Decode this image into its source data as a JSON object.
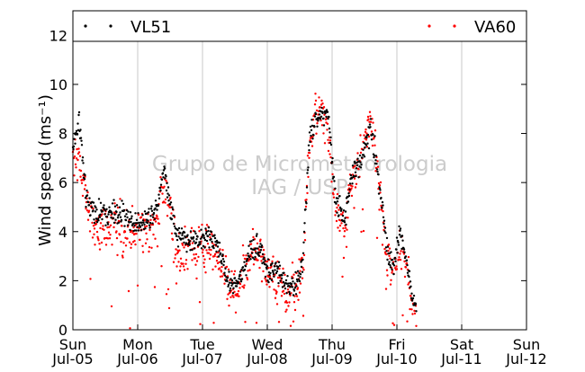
{
  "chart_data": {
    "type": "scatter",
    "ylabel": "Wind speed (ms⁻¹)",
    "ylim": [
      0,
      13
    ],
    "y_ticks": [
      0,
      2,
      4,
      6,
      8,
      10,
      12
    ],
    "x_range_days": [
      0,
      7
    ],
    "grid": "vertical",
    "legend_placement": "top",
    "watermark_lines": [
      "Grupo de Micrometeorologia",
      "IAG / USP"
    ],
    "x_ticks": [
      {
        "day": "Sun",
        "date": "Jul-05"
      },
      {
        "day": "Mon",
        "date": "Jul-06"
      },
      {
        "day": "Tue",
        "date": "Jul-07"
      },
      {
        "day": "Wed",
        "date": "Jul-08"
      },
      {
        "day": "Thu",
        "date": "Jul-09"
      },
      {
        "day": "Fri",
        "date": "Jul-10"
      },
      {
        "day": "Sat",
        "date": "Jul-11"
      },
      {
        "day": "Sun",
        "date": "Jul-12"
      }
    ],
    "series": [
      {
        "name": "VL51",
        "color": "#000000",
        "spread": 0.55,
        "trend": [
          [
            0.0,
            7.4
          ],
          [
            0.1,
            8.6
          ],
          [
            0.2,
            5.3
          ],
          [
            0.35,
            4.8
          ],
          [
            0.6,
            4.7
          ],
          [
            0.8,
            4.7
          ],
          [
            0.95,
            4.3
          ],
          [
            1.15,
            4.5
          ],
          [
            1.3,
            5.1
          ],
          [
            1.4,
            6.6
          ],
          [
            1.5,
            5.2
          ],
          [
            1.6,
            3.9
          ],
          [
            1.8,
            3.6
          ],
          [
            1.95,
            3.7
          ],
          [
            2.1,
            3.8
          ],
          [
            2.25,
            3.4
          ],
          [
            2.4,
            1.9
          ],
          [
            2.55,
            1.9
          ],
          [
            2.75,
            3.3
          ],
          [
            2.9,
            3.4
          ],
          [
            3.0,
            2.3
          ],
          [
            3.15,
            2.4
          ],
          [
            3.3,
            1.9
          ],
          [
            3.45,
            1.8
          ],
          [
            3.55,
            2.8
          ],
          [
            3.65,
            7.8
          ],
          [
            3.8,
            8.8
          ],
          [
            3.95,
            8.6
          ],
          [
            4.05,
            5.3
          ],
          [
            4.2,
            4.5
          ],
          [
            4.3,
            6.2
          ],
          [
            4.45,
            7.0
          ],
          [
            4.6,
            8.2
          ],
          [
            4.75,
            5.7
          ],
          [
            4.85,
            3.2
          ],
          [
            4.95,
            2.6
          ],
          [
            5.05,
            4.0
          ],
          [
            5.15,
            2.7
          ],
          [
            5.25,
            1.2
          ],
          [
            5.3,
            0.7
          ]
        ]
      },
      {
        "name": "VA60",
        "color": "#ff0000",
        "spread": 1.1,
        "trend": [
          [
            0.0,
            6.8
          ],
          [
            0.1,
            7.2
          ],
          [
            0.2,
            5.2
          ],
          [
            0.35,
            4.1
          ],
          [
            0.6,
            4.3
          ],
          [
            0.8,
            3.9
          ],
          [
            0.95,
            4.0
          ],
          [
            1.15,
            4.1
          ],
          [
            1.3,
            4.4
          ],
          [
            1.4,
            6.2
          ],
          [
            1.5,
            4.8
          ],
          [
            1.6,
            3.0
          ],
          [
            1.8,
            3.3
          ],
          [
            1.95,
            3.5
          ],
          [
            2.1,
            3.4
          ],
          [
            2.25,
            3.0
          ],
          [
            2.4,
            1.8
          ],
          [
            2.55,
            1.7
          ],
          [
            2.75,
            3.1
          ],
          [
            2.9,
            3.3
          ],
          [
            3.0,
            2.2
          ],
          [
            3.15,
            2.0
          ],
          [
            3.3,
            1.5
          ],
          [
            3.45,
            1.5
          ],
          [
            3.55,
            2.6
          ],
          [
            3.65,
            7.6
          ],
          [
            3.8,
            9.0
          ],
          [
            3.95,
            8.0
          ],
          [
            4.05,
            4.8
          ],
          [
            4.2,
            4.1
          ],
          [
            4.3,
            5.8
          ],
          [
            4.45,
            7.2
          ],
          [
            4.6,
            8.6
          ],
          [
            4.75,
            5.4
          ],
          [
            4.85,
            2.7
          ],
          [
            4.95,
            2.3
          ],
          [
            5.05,
            3.6
          ],
          [
            5.15,
            2.4
          ],
          [
            5.25,
            1.1
          ],
          [
            5.3,
            0.6
          ]
        ]
      }
    ]
  }
}
